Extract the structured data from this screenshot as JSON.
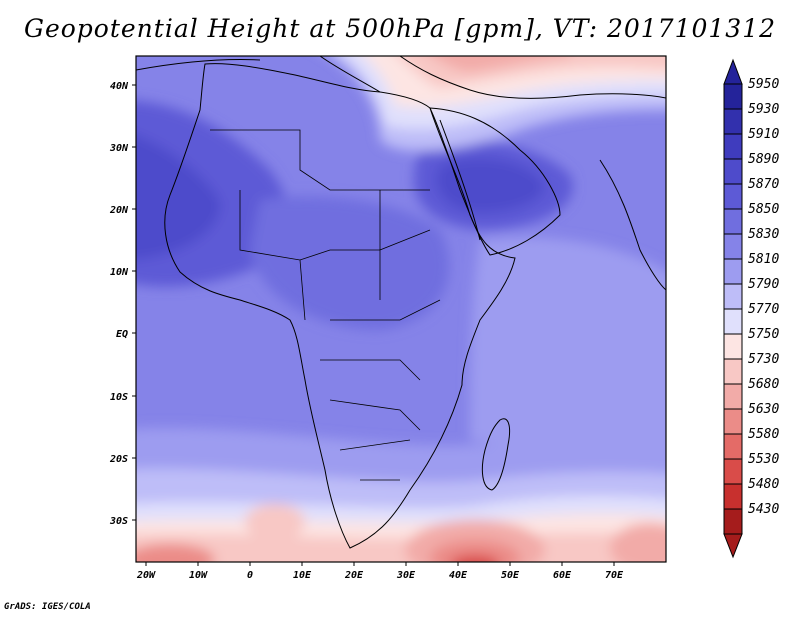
{
  "title": "Geopotential Height at 500hPa [gpm], VT: 2017101312",
  "credit": "GrADS: IGES/COLA",
  "map": {
    "lon_labels": [
      "20W",
      "10W",
      "0",
      "10E",
      "20E",
      "30E",
      "40E",
      "50E",
      "60E",
      "70E"
    ],
    "lat_labels": [
      "40N",
      "30N",
      "20N",
      "10N",
      "EQ",
      "10S",
      "20S",
      "30S"
    ],
    "lon_range": [
      -22,
      80
    ],
    "lat_range": [
      -36,
      45
    ]
  },
  "colorbar": {
    "labels": [
      "5950",
      "5930",
      "5910",
      "5890",
      "5870",
      "5850",
      "5830",
      "5810",
      "5790",
      "5770",
      "5750",
      "5730",
      "5680",
      "5630",
      "5580",
      "5530",
      "5480",
      "5430"
    ],
    "colors": [
      "#24239a",
      "#3230ad",
      "#3f3cbe",
      "#4e4bcb",
      "#5d5ad6",
      "#706edf",
      "#8583e8",
      "#9d9cf0",
      "#bebdf8",
      "#e0e0fc",
      "#fde5e3",
      "#f8c8c5",
      "#f2aba8",
      "#eb8c88",
      "#e46b67",
      "#d94c49",
      "#c8302e",
      "#a51c1c"
    ]
  }
}
